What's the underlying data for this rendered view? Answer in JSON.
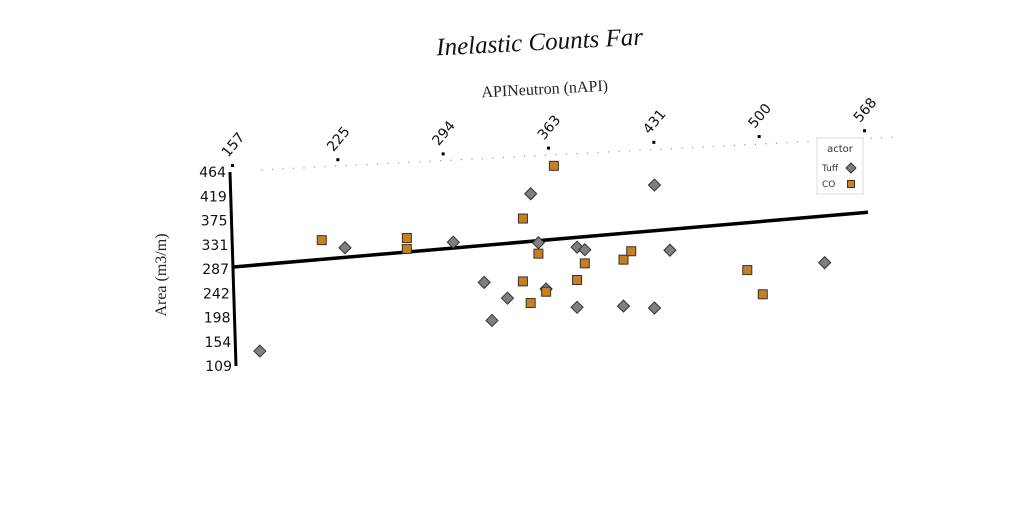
{
  "chart_data": {
    "type": "scatter",
    "title": "Inelastic Counts Far",
    "xlabel": "APINeutron (nAPI)",
    "ylabel": "Area (m3/m)",
    "x_ticks": [
      "157",
      "225",
      "294",
      "363",
      "431",
      "500",
      "568"
    ],
    "y_ticks": [
      "109",
      "154",
      "198",
      "242",
      "287",
      "331",
      "375",
      "419",
      "464"
    ],
    "xlim": [
      157,
      568
    ],
    "ylim": [
      109,
      464
    ],
    "legend_title": "actor",
    "legend_position": "top-right",
    "series": [
      {
        "name": "Tuff",
        "marker": "diamond",
        "color": "#7f7f7f",
        "x": [
          175,
          230,
          300,
          320,
          325,
          335,
          350,
          355,
          360,
          380,
          380,
          385,
          410,
          430,
          430,
          440,
          540
        ],
        "y": [
          135,
          320,
          325,
          250,
          180,
          220,
          410,
          320,
          235,
          200,
          310,
          305,
          200,
          420,
          195,
          300,
          270
        ]
      },
      {
        "name": "CO",
        "marker": "square",
        "color": "#c8801e",
        "x": [
          215,
          270,
          270,
          345,
          345,
          350,
          355,
          360,
          365,
          380,
          385,
          410,
          415,
          490,
          500
        ],
        "y": [
          335,
          335,
          315,
          365,
          250,
          210,
          300,
          230,
          460,
          250,
          280,
          285,
          300,
          260,
          215
        ]
      }
    ],
    "trendline": {
      "x": [
        157,
        568
      ],
      "y": [
        290,
        360
      ]
    }
  }
}
